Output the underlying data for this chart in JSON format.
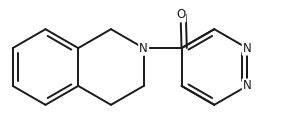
{
  "bg_color": "#ffffff",
  "line_color": "#1a1a1a",
  "lw": 1.4,
  "dbo": 0.048,
  "fs": 8.5,
  "figsize": [
    2.9,
    1.34
  ],
  "dpi": 100,
  "bl": 0.38,
  "xlim": [
    0.05,
    2.95
  ],
  "ylim": [
    0.02,
    1.32
  ]
}
